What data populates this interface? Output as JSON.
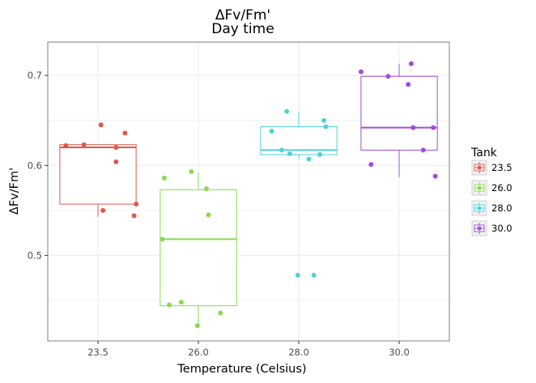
{
  "chart_data": {
    "type": "box",
    "title": "ΔFv/Fm'",
    "subtitle": "Day time",
    "xlabel": "Temperature (Celsius)",
    "ylabel": "ΔFv/Fm'",
    "categories": [
      "23.5",
      "26.0",
      "28.0",
      "30.0"
    ],
    "yticks": [
      "0.5",
      "0.6",
      "0.7"
    ],
    "ylim": [
      0.405,
      0.737
    ],
    "grid": true,
    "legend": {
      "title": "Tank",
      "placement": "right"
    },
    "series": [
      {
        "name": "23.5",
        "color": "#e0584c",
        "box": {
          "whisker_low": 0.543,
          "q1": 0.557,
          "median": 0.62,
          "q3": 0.623,
          "whisker_high": 0.623
        },
        "points": [
          [
            -0.32,
            0.622
          ],
          [
            -0.14,
            0.623
          ],
          [
            0.03,
            0.645
          ],
          [
            0.18,
            0.62
          ],
          [
            0.27,
            0.636
          ],
          [
            0.18,
            0.604
          ],
          [
            0.38,
            0.557
          ],
          [
            0.05,
            0.55
          ],
          [
            0.36,
            0.544
          ]
        ]
      },
      {
        "name": "26.0",
        "color": "#8ad94e",
        "box": {
          "whisker_low": 0.421,
          "q1": 0.444,
          "median": 0.518,
          "q3": 0.573,
          "whisker_high": 0.592
        },
        "points": [
          [
            -0.34,
            0.586
          ],
          [
            -0.07,
            0.593
          ],
          [
            0.08,
            0.574
          ],
          [
            0.1,
            0.545
          ],
          [
            -0.36,
            0.518
          ],
          [
            -0.29,
            0.445
          ],
          [
            -0.17,
            0.448
          ],
          [
            0.22,
            0.436
          ],
          [
            -0.01,
            0.422
          ]
        ]
      },
      {
        "name": "28.0",
        "color": "#4fd1dc",
        "box": {
          "whisker_low": 0.607,
          "q1": 0.612,
          "median": 0.617,
          "q3": 0.643,
          "whisker_high": 0.66
        },
        "points": [
          [
            -0.12,
            0.66
          ],
          [
            0.25,
            0.65
          ],
          [
            -0.27,
            0.638
          ],
          [
            0.27,
            0.643
          ],
          [
            -0.17,
            0.617
          ],
          [
            -0.09,
            0.613
          ],
          [
            0.21,
            0.612
          ],
          [
            0.1,
            0.607
          ],
          [
            -0.01,
            0.478
          ],
          [
            0.15,
            0.478
          ]
        ]
      },
      {
        "name": "30.0",
        "color": "#a14ddb",
        "box": {
          "whisker_low": 0.587,
          "q1": 0.617,
          "median": 0.642,
          "q3": 0.699,
          "whisker_high": 0.713
        },
        "points": [
          [
            -0.38,
            0.704
          ],
          [
            -0.11,
            0.699
          ],
          [
            0.12,
            0.713
          ],
          [
            0.09,
            0.69
          ],
          [
            0.14,
            0.642
          ],
          [
            0.34,
            0.642
          ],
          [
            0.24,
            0.617
          ],
          [
            -0.28,
            0.601
          ],
          [
            0.36,
            0.588
          ]
        ]
      }
    ]
  }
}
